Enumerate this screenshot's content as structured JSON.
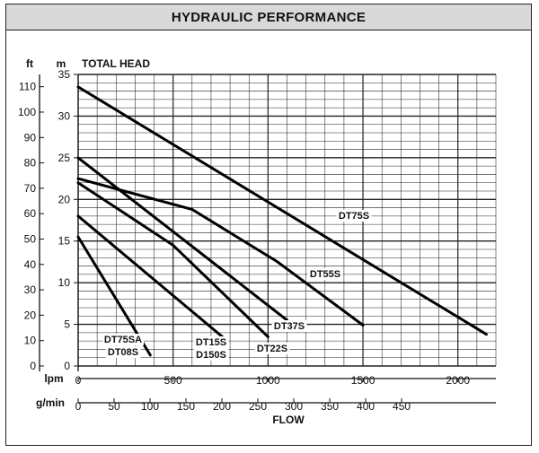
{
  "panel_title": "HYDRAULIC PERFORMANCE",
  "chart_data": {
    "type": "line",
    "title": "HYDRAULIC PERFORMANCE",
    "y_axis": {
      "label": "TOTAL HEAD",
      "primary_unit": "m",
      "secondary_unit": "ft",
      "m_range": [
        0,
        35
      ],
      "m_ticks": [
        "0",
        "5",
        "10",
        "15",
        "20",
        "25",
        "30",
        "35"
      ],
      "ft_ticks": [
        "0",
        "10",
        "20",
        "30",
        "40",
        "50",
        "60",
        "70",
        "80",
        "90",
        "100",
        "110"
      ]
    },
    "x_axis": {
      "label": "FLOW",
      "primary_unit": "lpm",
      "secondary_unit": "g/min",
      "lpm_range": [
        0,
        2200
      ],
      "lpm_ticks": [
        "0",
        "500",
        "1000",
        "1500",
        "2000"
      ],
      "gpm_ticks": [
        "0",
        "50",
        "100",
        "150",
        "200",
        "250",
        "300",
        "350",
        "400",
        "450"
      ]
    },
    "grid": true,
    "series": [
      {
        "name": "DT75S",
        "x_lpm": [
          0,
          2150
        ],
        "y_m": [
          33.5,
          3.8
        ]
      },
      {
        "name": "DT55S",
        "x_lpm": [
          0,
          600,
          1050,
          1500
        ],
        "y_m": [
          22.5,
          18.8,
          12.5,
          4.9
        ]
      },
      {
        "name": "DT37S",
        "x_lpm": [
          0,
          1100
        ],
        "y_m": [
          25,
          5.5
        ]
      },
      {
        "name": "DT22S",
        "x_lpm": [
          0,
          500,
          1000
        ],
        "y_m": [
          22,
          14.5,
          3.5
        ]
      },
      {
        "name": "DT15S/D150S",
        "x_lpm": [
          0,
          760
        ],
        "y_m": [
          18,
          3.5
        ]
      },
      {
        "name": "DT75SA/DT08S",
        "x_lpm": [
          0,
          380
        ],
        "y_m": [
          15.5,
          1.3
        ]
      }
    ],
    "labels": [
      {
        "text": "DT75S",
        "series": "DT75S"
      },
      {
        "text": "DT55S",
        "series": "DT55S"
      },
      {
        "text": "DT37S",
        "series": "DT37S"
      },
      {
        "text": "DT22S",
        "series": "DT22S"
      },
      {
        "text": "DT15S",
        "series": "DT15S/D150S"
      },
      {
        "text": "D150S",
        "series": "DT15S/D150S"
      },
      {
        "text": "DT75SA",
        "series": "DT75SA/DT08S"
      },
      {
        "text": "DT08S",
        "series": "DT75SA/DT08S"
      }
    ]
  }
}
